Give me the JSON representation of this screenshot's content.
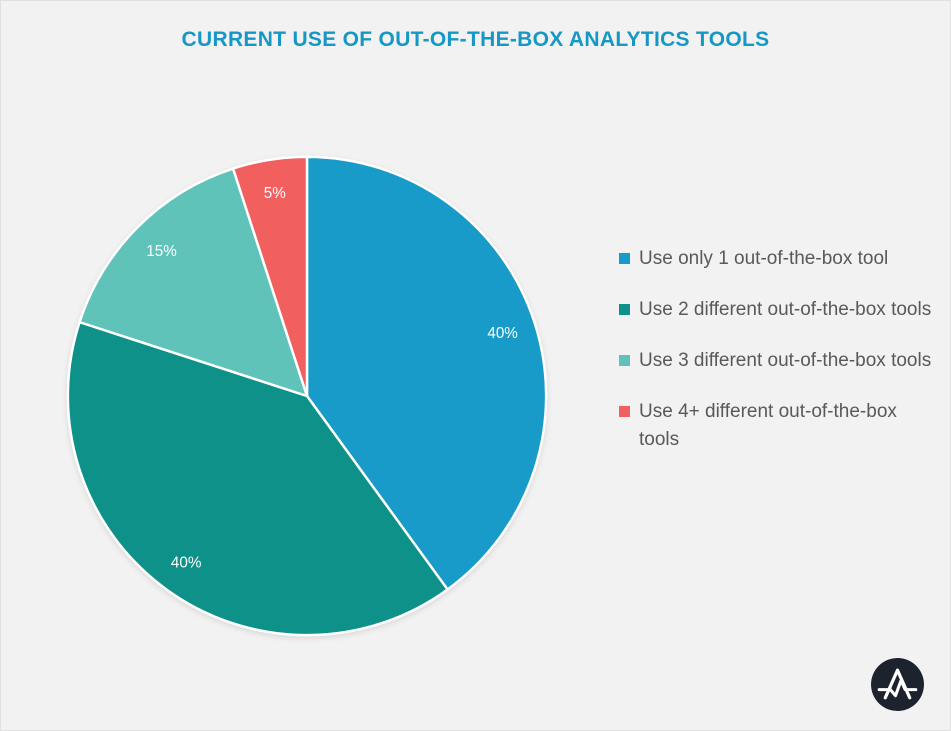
{
  "colors": {
    "background": "#F2F2F2",
    "border": "#E0E0E0",
    "title": "#1598C5",
    "legend_text": "#595959",
    "logo_bg": "#1C222E",
    "logo_glyph": "#FFFFFF"
  },
  "chart_data": {
    "type": "pie",
    "title": "CURRENT USE OF OUT-OF-THE-BOX ANALYTICS TOOLS",
    "direction": "clockwise",
    "start_angle_deg": 0,
    "legend_position": "right",
    "label_color": "#FFFFFF",
    "slices": [
      {
        "label": "Use only 1 out-of-the-box tool",
        "value": 40,
        "display": "40%",
        "color": "#189BC8"
      },
      {
        "label": "Use 2 different out-of-the-box tools",
        "value": 40,
        "display": "40%",
        "color": "#0D9189"
      },
      {
        "label": "Use 3 different out-of-the-box tools",
        "value": 15,
        "display": "15%",
        "color": "#60C3BA"
      },
      {
        "label": "Use 4+ different out-of-the-box tools",
        "value": 5,
        "display": "5%",
        "color": "#F15F5F"
      }
    ]
  },
  "logo": {
    "icon": "a-pulse-logo-icon"
  }
}
